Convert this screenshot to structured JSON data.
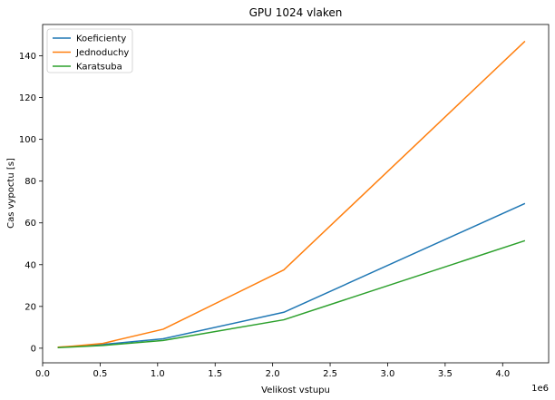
{
  "chart_data": {
    "type": "line",
    "title": "GPU 1024 vlaken",
    "xlabel": "Velikost vstupu",
    "ylabel": "Cas vypoctu [s]",
    "x_offset_label": "1e6",
    "x_scale": 1000000,
    "xlim": [
      0,
      4400000
    ],
    "ylim": [
      -7,
      155
    ],
    "x_ticks": [
      0,
      500000,
      1000000,
      1500000,
      2000000,
      2500000,
      3000000,
      3500000,
      4000000
    ],
    "x_tick_labels": [
      "0.0",
      "0.5",
      "1.0",
      "1.5",
      "2.0",
      "2.5",
      "3.0",
      "3.5",
      "4.0"
    ],
    "y_ticks": [
      0,
      20,
      40,
      60,
      80,
      100,
      120,
      140
    ],
    "y_tick_labels": [
      "0",
      "20",
      "40",
      "60",
      "80",
      "100",
      "120",
      "140"
    ],
    "grid": false,
    "legend_position": "top-left",
    "x": [
      131072,
      262144,
      524288,
      1048576,
      2097152,
      4194304
    ],
    "series": [
      {
        "name": "Koeficienty",
        "color": "#1f77b4",
        "values": [
          0.4,
          0.8,
          1.8,
          4.5,
          17.2,
          69.3
        ]
      },
      {
        "name": "Jednoduchy",
        "color": "#ff7f0e",
        "values": [
          0.5,
          1.0,
          2.3,
          9.1,
          37.5,
          147.0
        ]
      },
      {
        "name": "Karatsuba",
        "color": "#2ca02c",
        "values": [
          0.3,
          0.6,
          1.3,
          3.7,
          13.6,
          51.5
        ]
      }
    ]
  }
}
